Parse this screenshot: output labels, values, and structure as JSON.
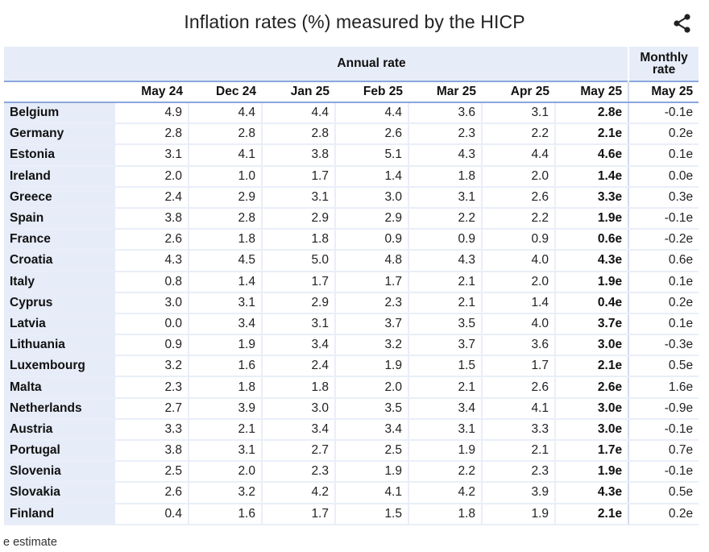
{
  "chart_data": {
    "type": "table",
    "title": "Inflation rates (%) measured by the HICP",
    "group_headers": {
      "annual": "Annual rate",
      "monthly": "Monthly rate"
    },
    "columns": [
      "May 24",
      "Dec 24",
      "Jan 25",
      "Feb 25",
      "Mar 25",
      "Apr 25",
      "May 25",
      "May 25"
    ],
    "rows": [
      {
        "country": "Belgium",
        "values": [
          "4.9",
          "4.4",
          "4.4",
          "4.4",
          "3.6",
          "3.1",
          "2.8e",
          "-0.1e"
        ]
      },
      {
        "country": "Germany",
        "values": [
          "2.8",
          "2.8",
          "2.8",
          "2.6",
          "2.3",
          "2.2",
          "2.1e",
          "0.2e"
        ]
      },
      {
        "country": "Estonia",
        "values": [
          "3.1",
          "4.1",
          "3.8",
          "5.1",
          "4.3",
          "4.4",
          "4.6e",
          "0.1e"
        ]
      },
      {
        "country": "Ireland",
        "values": [
          "2.0",
          "1.0",
          "1.7",
          "1.4",
          "1.8",
          "2.0",
          "1.4e",
          "0.0e"
        ]
      },
      {
        "country": "Greece",
        "values": [
          "2.4",
          "2.9",
          "3.1",
          "3.0",
          "3.1",
          "2.6",
          "3.3e",
          "0.3e"
        ]
      },
      {
        "country": "Spain",
        "values": [
          "3.8",
          "2.8",
          "2.9",
          "2.9",
          "2.2",
          "2.2",
          "1.9e",
          "-0.1e"
        ]
      },
      {
        "country": "France",
        "values": [
          "2.6",
          "1.8",
          "1.8",
          "0.9",
          "0.9",
          "0.9",
          "0.6e",
          "-0.2e"
        ]
      },
      {
        "country": "Croatia",
        "values": [
          "4.3",
          "4.5",
          "5.0",
          "4.8",
          "4.3",
          "4.0",
          "4.3e",
          "0.6e"
        ]
      },
      {
        "country": "Italy",
        "values": [
          "0.8",
          "1.4",
          "1.7",
          "1.7",
          "2.1",
          "2.0",
          "1.9e",
          "0.1e"
        ]
      },
      {
        "country": "Cyprus",
        "values": [
          "3.0",
          "3.1",
          "2.9",
          "2.3",
          "2.1",
          "1.4",
          "0.4e",
          "0.2e"
        ]
      },
      {
        "country": "Latvia",
        "values": [
          "0.0",
          "3.4",
          "3.1",
          "3.7",
          "3.5",
          "4.0",
          "3.7e",
          "0.1e"
        ]
      },
      {
        "country": "Lithuania",
        "values": [
          "0.9",
          "1.9",
          "3.4",
          "3.2",
          "3.7",
          "3.6",
          "3.0e",
          "-0.3e"
        ]
      },
      {
        "country": "Luxembourg",
        "values": [
          "3.2",
          "1.6",
          "2.4",
          "1.9",
          "1.5",
          "1.7",
          "2.1e",
          "0.5e"
        ]
      },
      {
        "country": "Malta",
        "values": [
          "2.3",
          "1.8",
          "1.8",
          "2.0",
          "2.1",
          "2.6",
          "2.6e",
          "1.6e"
        ]
      },
      {
        "country": "Netherlands",
        "values": [
          "2.7",
          "3.9",
          "3.0",
          "3.5",
          "3.4",
          "4.1",
          "3.0e",
          "-0.9e"
        ]
      },
      {
        "country": "Austria",
        "values": [
          "3.3",
          "2.1",
          "3.4",
          "3.4",
          "3.1",
          "3.3",
          "3.0e",
          "-0.1e"
        ]
      },
      {
        "country": "Portugal",
        "values": [
          "3.8",
          "3.1",
          "2.7",
          "2.5",
          "1.9",
          "2.1",
          "1.7e",
          "0.7e"
        ]
      },
      {
        "country": "Slovenia",
        "values": [
          "2.5",
          "2.0",
          "2.3",
          "1.9",
          "2.2",
          "2.3",
          "1.9e",
          "-0.1e"
        ]
      },
      {
        "country": "Slovakia",
        "values": [
          "2.6",
          "3.2",
          "4.2",
          "4.1",
          "4.2",
          "3.9",
          "4.3e",
          "0.5e"
        ]
      },
      {
        "country": "Finland",
        "values": [
          "0.4",
          "1.6",
          "1.7",
          "1.5",
          "1.8",
          "1.9",
          "2.1e",
          "0.2e"
        ]
      }
    ],
    "footnote": "e estimate",
    "colors": {
      "header_bg": "#e6ecf8",
      "rule": "#8ba6dc",
      "row_line": "#e9eef8"
    }
  },
  "ui": {
    "share_icon": "share-icon"
  }
}
